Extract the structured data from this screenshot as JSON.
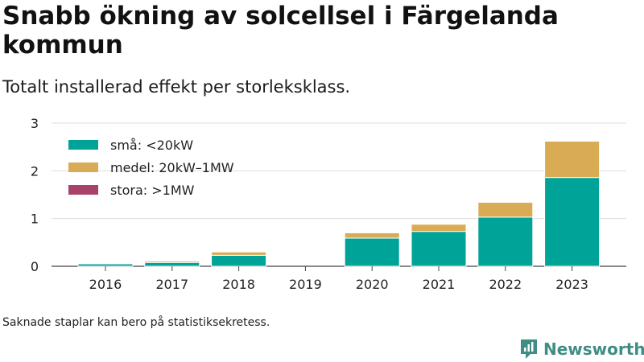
{
  "title": "Snabb ökning av solcellsel i Färgelanda kommun",
  "subtitle": "Totalt installerad effekt per storleksklass.",
  "note": "Saknade staplar kan bero på statistiksekretess.",
  "brand": {
    "name": "Newsworthy",
    "icon": "bar-chart-logo-icon",
    "color": "#3f8d83"
  },
  "chart_data": {
    "type": "bar",
    "stacked": true,
    "categories": [
      "2016",
      "2017",
      "2018",
      "2019",
      "2020",
      "2021",
      "2022",
      "2023"
    ],
    "series": [
      {
        "name": "små: <20kW",
        "color": "#00a398",
        "values": [
          0.05,
          0.08,
          0.23,
          0,
          0.59,
          0.73,
          1.03,
          1.86
        ]
      },
      {
        "name": "medel: 20kW–1MW",
        "color": "#d9ab55",
        "values": [
          0,
          0.03,
          0.07,
          0,
          0.11,
          0.15,
          0.31,
          0.76
        ]
      },
      {
        "name": "stora: >1MW",
        "color": "#a8426a",
        "values": [
          0,
          0,
          0,
          0,
          0,
          0,
          0,
          0
        ]
      }
    ],
    "ylim": [
      0,
      3
    ],
    "yticks": [
      0,
      1,
      2,
      3
    ],
    "grid": true,
    "legend": "top-left",
    "xlabel": "",
    "ylabel": ""
  }
}
